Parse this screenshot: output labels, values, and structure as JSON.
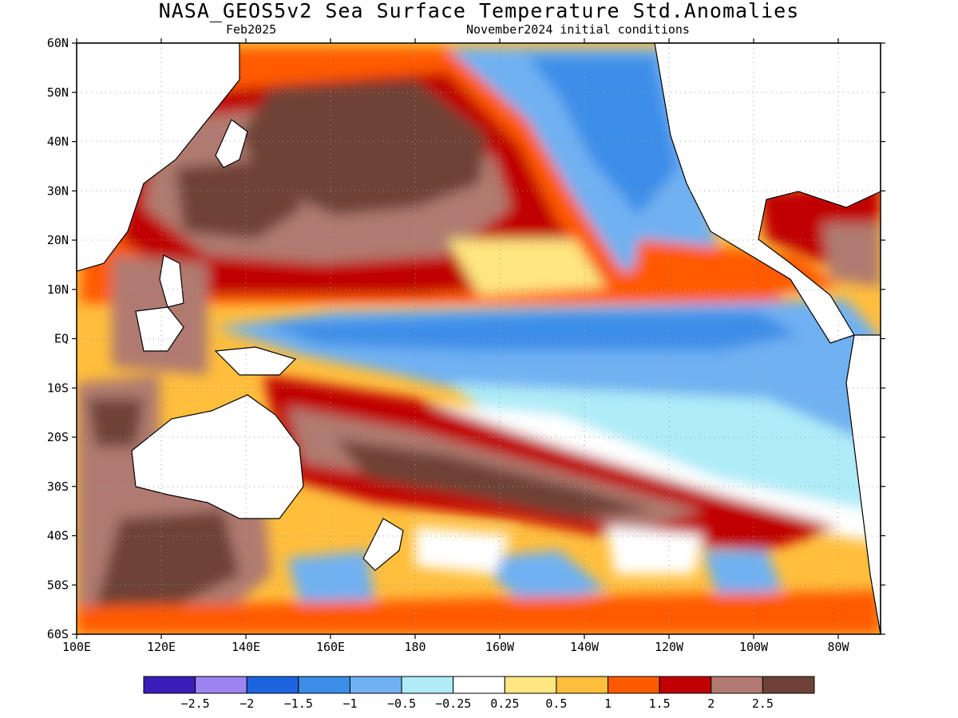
{
  "figure": {
    "title": "NASA_GEOS5v2 Sea Surface Temperature Std.Anomalies",
    "valid_month": "Feb2025",
    "init_conditions": "November2024 initial conditions"
  },
  "map": {
    "lon_ticks": [
      "100E",
      "120E",
      "140E",
      "160E",
      "180",
      "160W",
      "140W",
      "120W",
      "100W",
      "80W"
    ],
    "lat_ticks": [
      "60N",
      "50N",
      "40N",
      "30N",
      "20N",
      "10N",
      "EQ",
      "10S",
      "20S",
      "30S",
      "40S",
      "50S",
      "60S"
    ],
    "lon_range": "100E to 70W",
    "lat_range": "60S to 60N",
    "grid": "dotted"
  },
  "colorbar": {
    "orientation": "horizontal",
    "colors": [
      "#3a1db8",
      "#9b84f2",
      "#1c64e0",
      "#3c8ee8",
      "#70b1f2",
      "#aeecf8",
      "#ffffff",
      "#ffe680",
      "#ffbe3c",
      "#ff5a00",
      "#c00000",
      "#b07a70",
      "#6e4336"
    ],
    "labels": [
      "-2.5",
      "-2",
      "-1.5",
      "-1",
      "-0.5",
      "-0.25",
      "0.25",
      "0.5",
      "1",
      "1.5",
      "2",
      "2.5"
    ]
  },
  "anomaly_regions": [
    {
      "name": "equatorial-pacific-cold-tongue",
      "anomaly": "-1 to -0.5"
    },
    {
      "name": "north-pacific-warm",
      "anomaly": ">2.5"
    },
    {
      "name": "south-pacific-warm-band",
      "anomaly": "1.5 to 2.5"
    },
    {
      "name": "southeast-pacific-cool",
      "anomaly": "-0.5 to 0.25"
    },
    {
      "name": "north-american-coast-cool",
      "anomaly": "-1.5 to -0.5"
    }
  ]
}
